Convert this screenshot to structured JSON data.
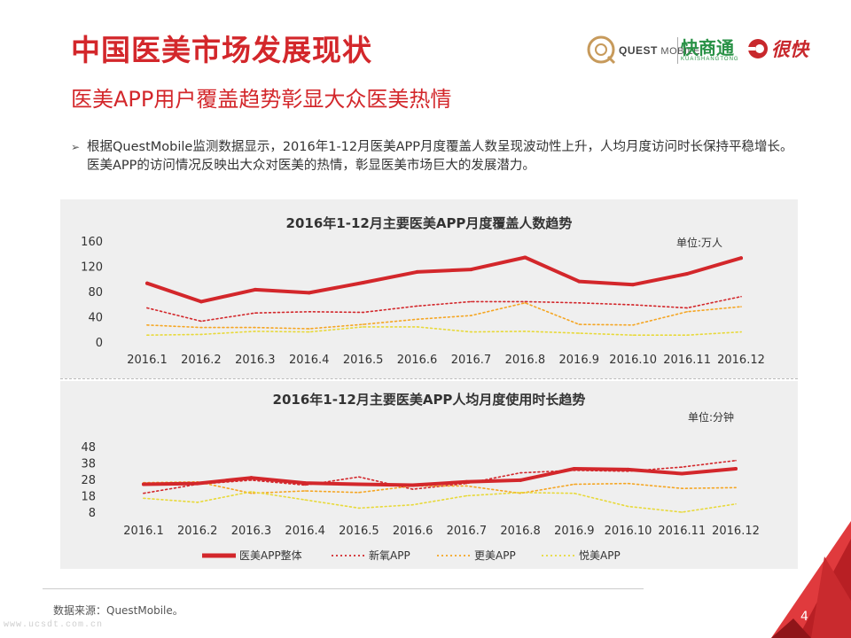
{
  "header": {
    "title": "中国医美市场发展现状",
    "subtitle": "医美APP用户覆盖趋势彰显大众医美热情",
    "logos": {
      "questmobile_bold": "QUEST",
      "questmobile_rest": "MOBILE",
      "kuaishangtong": "快商通",
      "kuaishangtong_pinyin": "KUAISHANGTONG",
      "henkuai": "很快"
    }
  },
  "intro": {
    "bullet_icon": "chevron-right-icon",
    "text": "根据QuestMobile监测数据显示，2016年1-12月医美APP月度覆盖人数呈现波动性上升，人均月度访问时长保持平稳增长。医美APP的访问情况反映出大众对医美的热情，彰显医美市场巨大的发展潜力。"
  },
  "chart_data": [
    {
      "type": "line",
      "title": "2016年1-12月主要医美APP月度覆盖人数趋势",
      "unit": "单位:万人",
      "categories": [
        "2016.1",
        "2016.2",
        "2016.3",
        "2016.4",
        "2016.5",
        "2016.6",
        "2016.7",
        "2016.8",
        "2016.9",
        "2016.10",
        "2016.11",
        "2016.12"
      ],
      "yticks": [
        0,
        40,
        80,
        120,
        160
      ],
      "ylim": [
        0,
        160
      ],
      "series": [
        {
          "name": "医美APP整体",
          "color": "#d3272b",
          "style": "solid",
          "values": [
            93,
            64,
            83,
            78,
            94,
            111,
            115,
            134,
            96,
            91,
            108,
            133
          ]
        },
        {
          "name": "新氧APP",
          "color": "#d3272b",
          "style": "dotted",
          "values": [
            54,
            33,
            46,
            48,
            47,
            57,
            64,
            64,
            62,
            59,
            54,
            72
          ]
        },
        {
          "name": "更美APP",
          "color": "#f5a623",
          "style": "dotted",
          "values": [
            27,
            23,
            23,
            21,
            28,
            36,
            42,
            62,
            28,
            27,
            48,
            56
          ]
        },
        {
          "name": "悦美APP",
          "color": "#e8d93a",
          "style": "dotted",
          "values": [
            11,
            12,
            17,
            16,
            24,
            24,
            16,
            17,
            14,
            11,
            11,
            16
          ]
        }
      ]
    },
    {
      "type": "line",
      "title": "2016年1-12月主要医美APP人均月度使用时长趋势",
      "unit": "单位:分钟",
      "categories": [
        "2016.1",
        "2016.2",
        "2016.3",
        "2016.4",
        "2016.5",
        "2016.6",
        "2016.7",
        "2016.8",
        "2016.9",
        "2016.10",
        "2016.11",
        "2016.12"
      ],
      "yticks": [
        8,
        18,
        28,
        38,
        48
      ],
      "ylim": [
        8,
        48
      ],
      "series": [
        {
          "name": "医美APP整体",
          "color": "#d3272b",
          "style": "solid",
          "values": [
            25,
            25.5,
            29,
            25.8,
            25,
            24.5,
            26.5,
            27.5,
            34.5,
            34,
            31.5,
            34.5
          ]
        },
        {
          "name": "新氧APP",
          "color": "#d3272b",
          "style": "dotted",
          "values": [
            19.5,
            25,
            27.5,
            24.5,
            29.5,
            22,
            25.5,
            32,
            33.5,
            33,
            35.5,
            39.5
          ]
        },
        {
          "name": "更美APP",
          "color": "#f5a623",
          "style": "dotted",
          "values": [
            26,
            26.5,
            19.5,
            21,
            20,
            24,
            24,
            19.5,
            25,
            25.5,
            22.5,
            23
          ]
        },
        {
          "name": "悦美APP",
          "color": "#e8d93a",
          "style": "dotted",
          "values": [
            16.5,
            14,
            20.5,
            15.5,
            10.5,
            12.5,
            18,
            20,
            19.5,
            11.5,
            8,
            13
          ]
        }
      ],
      "legend": "bottom"
    }
  ],
  "footer": {
    "source": "数据来源：QuestMobile。",
    "page_number": "4",
    "watermark": "www.ucsdt.com.cn"
  }
}
